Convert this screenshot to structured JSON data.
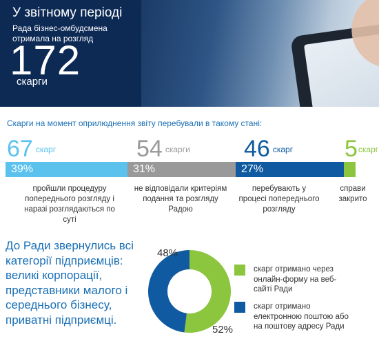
{
  "banner": {
    "title": "У звітному періоді",
    "subtitle": "Рада бізнес-омбудсмена отримала на розгляд",
    "number": "172",
    "unit": "скарги"
  },
  "intro": "Скарги на момент оприлюднення звіту перебували в такому стані:",
  "stats": [
    {
      "count": "67",
      "unit": "скарг",
      "percent": "39%",
      "color": "#5bc2ee",
      "description": "пройшли процедуру попереднього розгляду і наразі розглядаються по суті"
    },
    {
      "count": "54",
      "unit": "скарги",
      "percent": "31%",
      "color": "#999999",
      "description": "не відповідали критеріям подання та розгляду Радою"
    },
    {
      "count": "46",
      "unit": "скарг",
      "percent": "27%",
      "color": "#0f5aa0",
      "description": "перебувають у процесі попереднього розгляду"
    },
    {
      "count": "5",
      "unit": "скарг",
      "percent": "",
      "color": "#8cc63f",
      "description": "справи закрито"
    }
  ],
  "bottom_text": "До Ради звернулись всі категорії підприємців: великі корпорації, представники малого і середнього бізнесу, приватні підприємці.",
  "chart_data": {
    "type": "pie",
    "values": [
      52,
      48
    ],
    "labels": [
      "52%",
      "48%"
    ],
    "colors": [
      "#8cc63f",
      "#0f5aa0"
    ],
    "legend": [
      "скарг отримано через онлайн-форму на веб-сайті Ради",
      "скарг отримано електронною поштою або на поштову адресу Ради"
    ]
  }
}
